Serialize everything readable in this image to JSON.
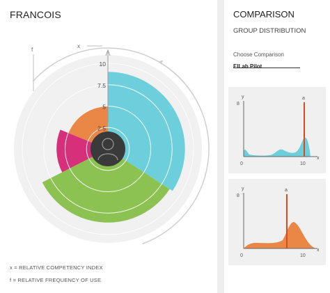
{
  "profile": {
    "name": "FRANCOIS",
    "radial": {
      "x_axis_label": "x",
      "f_axis_label": "f",
      "ticks": [
        "2.5",
        "5",
        "7.5",
        "10"
      ],
      "sectors": [
        {
          "name": "blue",
          "color": "#6ecfdc",
          "value": 9.0,
          "start_deg": 0,
          "end_deg": 123
        },
        {
          "name": "green",
          "color": "#8bc252",
          "value": 8.6,
          "start_deg": 123,
          "end_deg": 243
        },
        {
          "name": "magenta",
          "color": "#d6307a",
          "value": 6.0,
          "start_deg": 243,
          "end_deg": 292
        },
        {
          "name": "orange",
          "color": "#ea8746",
          "value": 5.0,
          "start_deg": 292,
          "end_deg": 360
        }
      ],
      "avatar_icon": "person-icon"
    },
    "legend": {
      "x": "x = RELATIVE COMPETENCY INDEX",
      "f": "f = RELATIVE FREQUENCY OF USE"
    }
  },
  "comparison": {
    "title": "COMPARISON",
    "subtitle": "GROUP DISTRIBUTION",
    "choose_label": "Choose Comparison",
    "choose_value": "ElLab Pilot",
    "cards": [
      {
        "y_label": "y",
        "y_max": "8",
        "x_min": "0",
        "x_max": "10",
        "x_label": "x",
        "marker_label": "a",
        "marker_x": 9.2,
        "fill": "#6ecfdc",
        "marker_color": "#d94a1f"
      },
      {
        "y_label": "y",
        "y_max": "8",
        "x_min": "0",
        "x_max": "10",
        "x_label": "x",
        "marker_label": "a",
        "marker_x": 6.2,
        "fill": "#ea8746",
        "marker_color": "#d94a1f"
      }
    ]
  }
}
